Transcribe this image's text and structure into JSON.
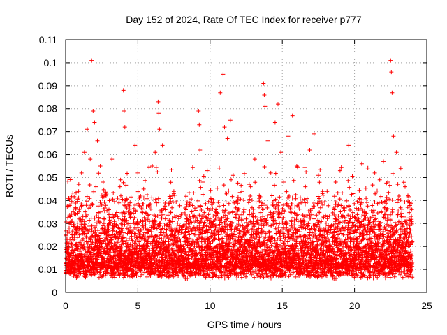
{
  "chart_data": {
    "type": "scatter",
    "title": "Day 152 of 2024, Rate Of TEC Index for receiver p777",
    "xlabel": "GPS time / hours",
    "ylabel": "ROTI / TECUs",
    "xlim": [
      0,
      25
    ],
    "ylim": [
      0,
      0.11
    ],
    "xticks": [
      "0",
      "5",
      "10",
      "15",
      "20",
      "25"
    ],
    "yticks": [
      "0",
      "0.01",
      "0.02",
      "0.03",
      "0.04",
      "0.05",
      "0.06",
      "0.07",
      "0.08",
      "0.09",
      "0.1",
      "0.11"
    ],
    "grid": true,
    "marker": "+",
    "point_color": "#ff0000",
    "series": [
      {
        "points": [
          [
            0.1,
            0.012
          ],
          [
            0.2,
            0.021
          ],
          [
            0.3,
            0.008
          ],
          [
            0.4,
            0.031
          ],
          [
            0.5,
            0.016
          ],
          [
            0.6,
            0.025
          ],
          [
            0.7,
            0.034
          ],
          [
            0.8,
            0.019
          ],
          [
            0.9,
            0.044
          ],
          [
            1.0,
            0.028
          ],
          [
            1.1,
            0.052
          ],
          [
            1.2,
            0.015
          ],
          [
            1.3,
            0.061
          ],
          [
            1.4,
            0.033
          ],
          [
            1.5,
            0.071
          ],
          [
            1.6,
            0.022
          ],
          [
            1.7,
            0.058
          ],
          [
            1.8,
            0.101
          ],
          [
            1.9,
            0.079
          ],
          [
            2.0,
            0.074
          ],
          [
            2.1,
            0.046
          ],
          [
            2.2,
            0.066
          ],
          [
            2.3,
            0.031
          ],
          [
            2.4,
            0.055
          ],
          [
            2.5,
            0.038
          ],
          [
            2.6,
            0.048
          ],
          [
            2.7,
            0.027
          ],
          [
            2.8,
            0.042
          ],
          [
            2.9,
            0.019
          ],
          [
            3.0,
            0.036
          ],
          [
            3.2,
            0.058
          ],
          [
            3.4,
            0.024
          ],
          [
            3.6,
            0.033
          ],
          [
            3.8,
            0.049
          ],
          [
            4.0,
            0.088
          ],
          [
            4.05,
            0.079
          ],
          [
            4.1,
            0.072
          ],
          [
            4.2,
            0.041
          ],
          [
            4.4,
            0.026
          ],
          [
            4.6,
            0.018
          ],
          [
            4.8,
            0.064
          ],
          [
            5.0,
            0.052
          ],
          [
            5.2,
            0.031
          ],
          [
            5.4,
            0.045
          ],
          [
            5.6,
            0.022
          ],
          [
            5.8,
            0.038
          ],
          [
            6.0,
            0.055
          ],
          [
            6.2,
            0.061
          ],
          [
            6.4,
            0.083
          ],
          [
            6.45,
            0.078
          ],
          [
            6.5,
            0.071
          ],
          [
            6.7,
            0.064
          ],
          [
            6.9,
            0.036
          ],
          [
            7.1,
            0.028
          ],
          [
            7.4,
            0.042
          ],
          [
            7.7,
            0.021
          ],
          [
            8.0,
            0.034
          ],
          [
            8.3,
            0.026
          ],
          [
            8.6,
            0.039
          ],
          [
            8.9,
            0.017
          ],
          [
            9.2,
            0.079
          ],
          [
            9.25,
            0.073
          ],
          [
            9.3,
            0.062
          ],
          [
            9.5,
            0.048
          ],
          [
            9.8,
            0.053
          ],
          [
            10.1,
            0.024
          ],
          [
            10.4,
            0.036
          ],
          [
            10.7,
            0.087
          ],
          [
            10.9,
            0.095
          ],
          [
            11.0,
            0.072
          ],
          [
            11.2,
            0.067
          ],
          [
            11.4,
            0.075
          ],
          [
            11.6,
            0.051
          ],
          [
            11.9,
            0.028
          ],
          [
            12.2,
            0.044
          ],
          [
            12.5,
            0.032
          ],
          [
            12.8,
            0.046
          ],
          [
            13.1,
            0.058
          ],
          [
            13.4,
            0.041
          ],
          [
            13.7,
            0.091
          ],
          [
            13.75,
            0.086
          ],
          [
            13.8,
            0.081
          ],
          [
            14.0,
            0.066
          ],
          [
            14.2,
            0.052
          ],
          [
            14.5,
            0.074
          ],
          [
            14.7,
            0.082
          ],
          [
            14.9,
            0.061
          ],
          [
            15.1,
            0.048
          ],
          [
            15.4,
            0.068
          ],
          [
            15.7,
            0.077
          ],
          [
            16.0,
            0.055
          ],
          [
            16.3,
            0.039
          ],
          [
            16.6,
            0.046
          ],
          [
            16.9,
            0.062
          ],
          [
            17.2,
            0.069
          ],
          [
            17.5,
            0.051
          ],
          [
            17.8,
            0.038
          ],
          [
            18.1,
            0.044
          ],
          [
            18.4,
            0.029
          ],
          [
            18.7,
            0.048
          ],
          [
            19.0,
            0.053
          ],
          [
            19.3,
            0.037
          ],
          [
            19.6,
            0.064
          ],
          [
            19.9,
            0.043
          ],
          [
            20.2,
            0.031
          ],
          [
            20.5,
            0.056
          ],
          [
            20.8,
            0.041
          ],
          [
            21.1,
            0.028
          ],
          [
            21.4,
            0.052
          ],
          [
            21.7,
            0.039
          ],
          [
            22.0,
            0.057
          ],
          [
            22.3,
            0.048
          ],
          [
            22.5,
            0.101
          ],
          [
            22.55,
            0.096
          ],
          [
            22.6,
            0.087
          ],
          [
            22.7,
            0.068
          ],
          [
            22.9,
            0.061
          ],
          [
            23.2,
            0.054
          ],
          [
            23.5,
            0.046
          ],
          [
            23.8,
            0.039
          ],
          [
            24.0,
            0.022
          ]
        ],
        "generated_note_free": true
      }
    ],
    "noise_band": {
      "x_start": 0.0,
      "x_end": 24.0,
      "step": 0.004,
      "baseline_low": 0.006,
      "baseline_high": 0.035
    }
  }
}
